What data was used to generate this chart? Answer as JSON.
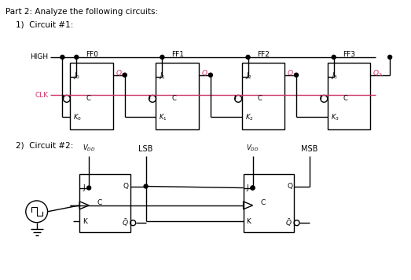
{
  "title_text": "Part 2: Analyze the following circuits:",
  "circuit1_label": "1)  Circuit #1:",
  "circuit2_label": "2)  Circuit #2:",
  "bg_color": "#ffffff",
  "line_color": "#000000",
  "clk_color": "#cc3366",
  "q_color": "#cc3366",
  "ff_labels": [
    "FF0",
    "FF1",
    "FF2",
    "FF3"
  ],
  "HIGH_label": "HIGH",
  "CLK_label": "CLK",
  "VDD_label": "V_{DD}",
  "LSB_label": "LSB",
  "MSB_label": "MSB"
}
